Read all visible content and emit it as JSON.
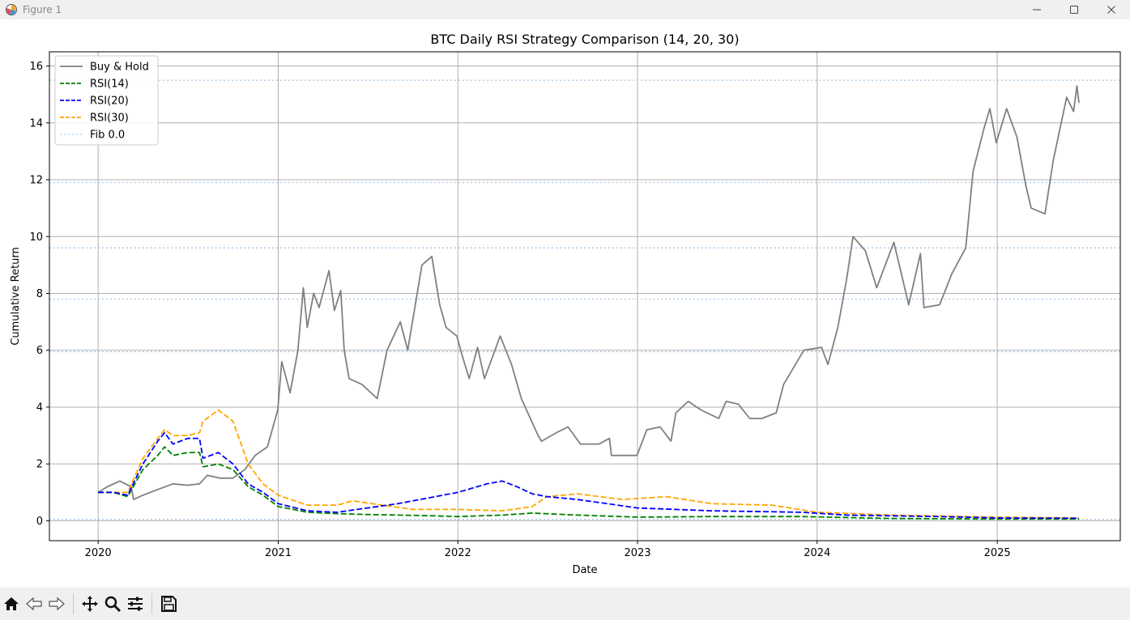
{
  "window": {
    "title": "Figure 1",
    "app_icon": "matplotlib-figure-icon",
    "controls": [
      "minimize-icon",
      "maximize-icon",
      "close-icon"
    ]
  },
  "toolbar": {
    "buttons": [
      "home-icon",
      "back-arrow-icon",
      "forward-arrow-icon",
      "pan-move-icon",
      "zoom-magnifier-icon",
      "configure-subplots-icon",
      "save-floppy-icon"
    ]
  },
  "chart_data": {
    "type": "line",
    "title": "BTC Daily RSI Strategy Comparison (14, 20, 30)",
    "xlabel": "Date",
    "ylabel": "Cumulative Return",
    "xlim": [
      "2019-09-24",
      "2025-09-08"
    ],
    "ylim": [
      -0.7,
      16.5
    ],
    "x_ticks": [
      "2020",
      "2021",
      "2022",
      "2023",
      "2024",
      "2025"
    ],
    "y_ticks": [
      0,
      2,
      4,
      6,
      8,
      10,
      12,
      14,
      16
    ],
    "grid": true,
    "legend": {
      "placement": "top-left",
      "entries": [
        "Buy & Hold",
        "RSI(14)",
        "RSI(20)",
        "RSI(30)",
        "Fib 0.0"
      ]
    },
    "colors": {
      "buy_hold": "#808080",
      "rsi14": "#008000",
      "rsi20": "#0000ff",
      "rsi30": "#ffa500",
      "fib": "#a7c7e7",
      "grid": "#b0b0b0"
    },
    "fib_levels": [
      0.05,
      5.95,
      7.8,
      9.6,
      11.9,
      15.5
    ],
    "series": [
      {
        "name": "Buy & Hold",
        "style": "solid",
        "color": "#808080",
        "points": [
          [
            "2020-01-01",
            1.0
          ],
          [
            "2020-01-20",
            1.2
          ],
          [
            "2020-02-14",
            1.4
          ],
          [
            "2020-03-08",
            1.2
          ],
          [
            "2020-03-13",
            0.75
          ],
          [
            "2020-04-01",
            0.9
          ],
          [
            "2020-05-01",
            1.1
          ],
          [
            "2020-06-01",
            1.3
          ],
          [
            "2020-07-01",
            1.25
          ],
          [
            "2020-07-25",
            1.3
          ],
          [
            "2020-08-10",
            1.6
          ],
          [
            "2020-09-05",
            1.5
          ],
          [
            "2020-10-01",
            1.5
          ],
          [
            "2020-10-25",
            1.8
          ],
          [
            "2020-11-15",
            2.3
          ],
          [
            "2020-12-10",
            2.6
          ],
          [
            "2020-12-31",
            3.9
          ],
          [
            "2021-01-08",
            5.6
          ],
          [
            "2021-01-25",
            4.5
          ],
          [
            "2021-02-10",
            6.0
          ],
          [
            "2021-02-21",
            8.2
          ],
          [
            "2021-03-01",
            6.8
          ],
          [
            "2021-03-14",
            8.0
          ],
          [
            "2021-03-25",
            7.5
          ],
          [
            "2021-04-14",
            8.8
          ],
          [
            "2021-04-25",
            7.4
          ],
          [
            "2021-05-08",
            8.1
          ],
          [
            "2021-05-15",
            6.0
          ],
          [
            "2021-05-25",
            5.0
          ],
          [
            "2021-06-20",
            4.8
          ],
          [
            "2021-07-21",
            4.3
          ],
          [
            "2021-08-10",
            6.0
          ],
          [
            "2021-09-06",
            7.0
          ],
          [
            "2021-09-21",
            6.0
          ],
          [
            "2021-10-20",
            9.0
          ],
          [
            "2021-11-09",
            9.3
          ],
          [
            "2021-11-25",
            7.6
          ],
          [
            "2021-12-08",
            6.8
          ],
          [
            "2021-12-30",
            6.5
          ],
          [
            "2022-01-10",
            5.8
          ],
          [
            "2022-01-24",
            5.0
          ],
          [
            "2022-02-10",
            6.1
          ],
          [
            "2022-02-24",
            5.0
          ],
          [
            "2022-03-28",
            6.5
          ],
          [
            "2022-04-20",
            5.5
          ],
          [
            "2022-05-10",
            4.3
          ],
          [
            "2022-06-13",
            3.0
          ],
          [
            "2022-06-20",
            2.8
          ],
          [
            "2022-07-20",
            3.1
          ],
          [
            "2022-08-13",
            3.3
          ],
          [
            "2022-09-07",
            2.7
          ],
          [
            "2022-10-15",
            2.7
          ],
          [
            "2022-11-05",
            2.9
          ],
          [
            "2022-11-09",
            2.3
          ],
          [
            "2022-12-31",
            2.3
          ],
          [
            "2023-01-20",
            3.2
          ],
          [
            "2023-02-16",
            3.3
          ],
          [
            "2023-03-10",
            2.8
          ],
          [
            "2023-03-20",
            3.8
          ],
          [
            "2023-04-14",
            4.2
          ],
          [
            "2023-05-10",
            3.9
          ],
          [
            "2023-06-15",
            3.6
          ],
          [
            "2023-06-30",
            4.2
          ],
          [
            "2023-07-25",
            4.1
          ],
          [
            "2023-08-17",
            3.6
          ],
          [
            "2023-09-11",
            3.6
          ],
          [
            "2023-10-10",
            3.8
          ],
          [
            "2023-10-25",
            4.8
          ],
          [
            "2023-12-05",
            6.0
          ],
          [
            "2024-01-10",
            6.1
          ],
          [
            "2024-01-23",
            5.5
          ],
          [
            "2024-02-12",
            6.8
          ],
          [
            "2024-03-01",
            8.5
          ],
          [
            "2024-03-14",
            10.0
          ],
          [
            "2024-04-08",
            9.5
          ],
          [
            "2024-05-01",
            8.2
          ],
          [
            "2024-06-05",
            9.8
          ],
          [
            "2024-07-05",
            7.6
          ],
          [
            "2024-07-29",
            9.4
          ],
          [
            "2024-08-05",
            7.5
          ],
          [
            "2024-09-06",
            7.6
          ],
          [
            "2024-10-01",
            8.7
          ],
          [
            "2024-10-29",
            9.6
          ],
          [
            "2024-11-13",
            12.3
          ],
          [
            "2024-12-05",
            13.8
          ],
          [
            "2024-12-17",
            14.5
          ],
          [
            "2024-12-30",
            13.3
          ],
          [
            "2025-01-20",
            14.5
          ],
          [
            "2025-02-10",
            13.5
          ],
          [
            "2025-02-28",
            11.8
          ],
          [
            "2025-03-11",
            11.0
          ],
          [
            "2025-04-08",
            10.8
          ],
          [
            "2025-04-25",
            12.7
          ],
          [
            "2025-05-22",
            14.9
          ],
          [
            "2025-06-05",
            14.4
          ],
          [
            "2025-06-12",
            15.3
          ],
          [
            "2025-06-16",
            14.7
          ]
        ]
      },
      {
        "name": "RSI(14)",
        "style": "dashed",
        "color": "#008000",
        "points": [
          [
            "2020-01-01",
            1.0
          ],
          [
            "2020-02-01",
            1.0
          ],
          [
            "2020-03-01",
            0.85
          ],
          [
            "2020-04-01",
            1.8
          ],
          [
            "2020-05-01",
            2.3
          ],
          [
            "2020-05-15",
            2.6
          ],
          [
            "2020-06-01",
            2.3
          ],
          [
            "2020-07-01",
            2.4
          ],
          [
            "2020-07-25",
            2.4
          ],
          [
            "2020-08-01",
            1.9
          ],
          [
            "2020-09-01",
            2.0
          ],
          [
            "2020-10-01",
            1.8
          ],
          [
            "2020-11-01",
            1.2
          ],
          [
            "2020-12-01",
            0.9
          ],
          [
            "2021-01-01",
            0.5
          ],
          [
            "2021-02-01",
            0.4
          ],
          [
            "2021-03-01",
            0.3
          ],
          [
            "2021-05-01",
            0.25
          ],
          [
            "2021-07-01",
            0.22
          ],
          [
            "2021-09-01",
            0.2
          ],
          [
            "2021-11-01",
            0.18
          ],
          [
            "2022-01-01",
            0.15
          ],
          [
            "2022-04-01",
            0.2
          ],
          [
            "2022-06-01",
            0.27
          ],
          [
            "2022-09-01",
            0.2
          ],
          [
            "2023-01-01",
            0.13
          ],
          [
            "2023-06-01",
            0.15
          ],
          [
            "2023-12-01",
            0.15
          ],
          [
            "2024-06-01",
            0.08
          ],
          [
            "2025-01-01",
            0.06
          ],
          [
            "2025-06-16",
            0.06
          ]
        ]
      },
      {
        "name": "RSI(20)",
        "style": "dashed",
        "color": "#0000ff",
        "points": [
          [
            "2020-01-01",
            1.0
          ],
          [
            "2020-02-01",
            1.0
          ],
          [
            "2020-03-01",
            0.9
          ],
          [
            "2020-04-01",
            2.0
          ],
          [
            "2020-05-01",
            2.8
          ],
          [
            "2020-05-15",
            3.1
          ],
          [
            "2020-06-01",
            2.7
          ],
          [
            "2020-07-01",
            2.9
          ],
          [
            "2020-07-25",
            2.9
          ],
          [
            "2020-08-01",
            2.2
          ],
          [
            "2020-09-01",
            2.4
          ],
          [
            "2020-10-01",
            2.0
          ],
          [
            "2020-11-01",
            1.3
          ],
          [
            "2020-12-01",
            1.0
          ],
          [
            "2021-01-01",
            0.6
          ],
          [
            "2021-03-01",
            0.35
          ],
          [
            "2021-05-01",
            0.3
          ],
          [
            "2021-07-01",
            0.45
          ],
          [
            "2021-09-01",
            0.6
          ],
          [
            "2021-11-01",
            0.8
          ],
          [
            "2022-01-01",
            1.0
          ],
          [
            "2022-03-01",
            1.3
          ],
          [
            "2022-04-01",
            1.4
          ],
          [
            "2022-05-01",
            1.2
          ],
          [
            "2022-06-01",
            0.95
          ],
          [
            "2022-07-01",
            0.85
          ],
          [
            "2022-09-01",
            0.75
          ],
          [
            "2022-11-01",
            0.6
          ],
          [
            "2023-01-01",
            0.45
          ],
          [
            "2023-06-01",
            0.35
          ],
          [
            "2023-12-01",
            0.3
          ],
          [
            "2024-03-01",
            0.2
          ],
          [
            "2024-09-01",
            0.15
          ],
          [
            "2025-01-01",
            0.1
          ],
          [
            "2025-06-16",
            0.09
          ]
        ]
      },
      {
        "name": "RSI(30)",
        "style": "dashed",
        "color": "#ffa500",
        "points": [
          [
            "2020-01-01",
            1.0
          ],
          [
            "2020-02-01",
            1.0
          ],
          [
            "2020-03-01",
            1.0
          ],
          [
            "2020-04-01",
            2.2
          ],
          [
            "2020-05-01",
            2.9
          ],
          [
            "2020-05-15",
            3.2
          ],
          [
            "2020-06-01",
            3.0
          ],
          [
            "2020-07-01",
            3.0
          ],
          [
            "2020-07-25",
            3.1
          ],
          [
            "2020-08-01",
            3.5
          ],
          [
            "2020-09-01",
            3.9
          ],
          [
            "2020-10-01",
            3.5
          ],
          [
            "2020-11-01",
            2.0
          ],
          [
            "2020-12-01",
            1.3
          ],
          [
            "2021-01-01",
            0.9
          ],
          [
            "2021-03-01",
            0.55
          ],
          [
            "2021-05-01",
            0.55
          ],
          [
            "2021-06-01",
            0.7
          ],
          [
            "2021-08-01",
            0.55
          ],
          [
            "2021-10-01",
            0.4
          ],
          [
            "2022-01-01",
            0.4
          ],
          [
            "2022-04-01",
            0.35
          ],
          [
            "2022-06-01",
            0.5
          ],
          [
            "2022-07-01",
            0.85
          ],
          [
            "2022-09-01",
            0.95
          ],
          [
            "2022-12-01",
            0.75
          ],
          [
            "2023-03-01",
            0.85
          ],
          [
            "2023-06-01",
            0.6
          ],
          [
            "2023-10-01",
            0.55
          ],
          [
            "2024-01-01",
            0.3
          ],
          [
            "2024-06-01",
            0.2
          ],
          [
            "2025-01-01",
            0.13
          ],
          [
            "2025-06-16",
            0.1
          ]
        ]
      }
    ]
  }
}
